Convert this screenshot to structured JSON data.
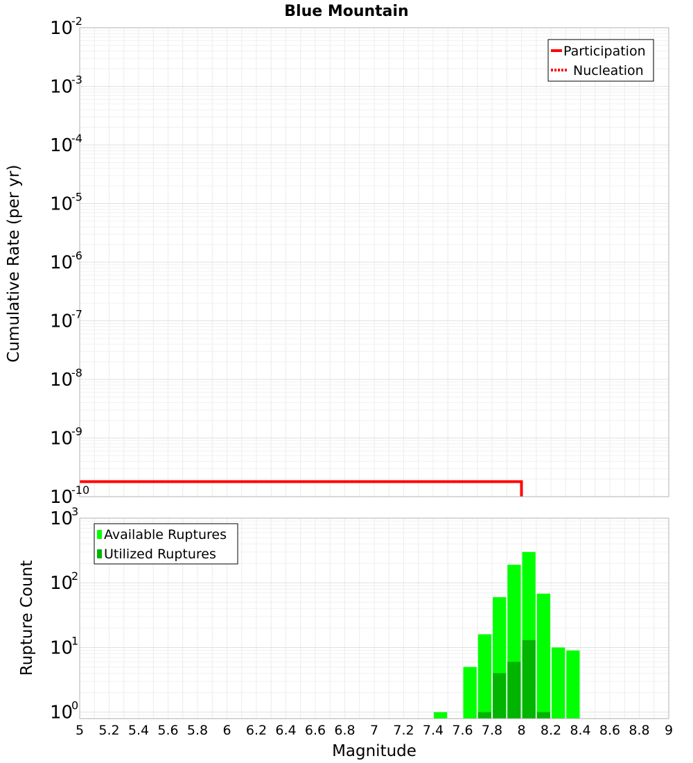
{
  "chart_data": [
    {
      "type": "line",
      "title": "Blue Mountain",
      "ylabel": "Cumulative Rate (per yr)",
      "xlabel": "",
      "xlim": [
        5,
        9
      ],
      "ylim_log10": [
        -10,
        -2
      ],
      "ytick_base": "10",
      "ytick_exponents": [
        "-2",
        "-3",
        "-4",
        "-5",
        "-6",
        "-7",
        "-8",
        "-9",
        "-10"
      ],
      "legend_position": "top-right",
      "series": [
        {
          "name": "Participation",
          "style": "solid",
          "color": "#ff0000",
          "x": [
            5.0,
            8.0,
            8.0
          ],
          "y": [
            1.8e-10,
            1.8e-10,
            1e-10
          ]
        },
        {
          "name": "Nucleation",
          "style": "dotted",
          "color": "#ff0000",
          "x": [],
          "y": []
        }
      ]
    },
    {
      "type": "bar",
      "ylabel": "Rupture Count",
      "xlabel": "Magnitude",
      "xlim": [
        5,
        9
      ],
      "ylim_log10": [
        -0.1,
        3
      ],
      "ytick_base": "10",
      "ytick_exponents": [
        "3",
        "2",
        "1",
        "0"
      ],
      "xticks": [
        "5",
        "5.2",
        "5.4",
        "5.6",
        "5.8",
        "6",
        "6.2",
        "6.4",
        "6.6",
        "6.8",
        "7",
        "7.2",
        "7.4",
        "7.6",
        "7.8",
        "8",
        "8.2",
        "8.4",
        "8.6",
        "8.8",
        "9"
      ],
      "bin_width": 0.1,
      "legend_position": "top-left",
      "series": [
        {
          "name": "Available Ruptures",
          "color": "#00ff00",
          "x": [
            7.45,
            7.65,
            7.75,
            7.85,
            7.95,
            8.05,
            8.15,
            8.25,
            8.35
          ],
          "values": [
            1,
            5,
            16,
            60,
            190,
            300,
            68,
            10,
            9
          ]
        },
        {
          "name": "Utilized Ruptures",
          "color": "#00b400",
          "x": [
            7.75,
            7.85,
            7.95,
            8.05,
            8.15
          ],
          "values": [
            1,
            4,
            6,
            13,
            1
          ]
        }
      ]
    }
  ]
}
